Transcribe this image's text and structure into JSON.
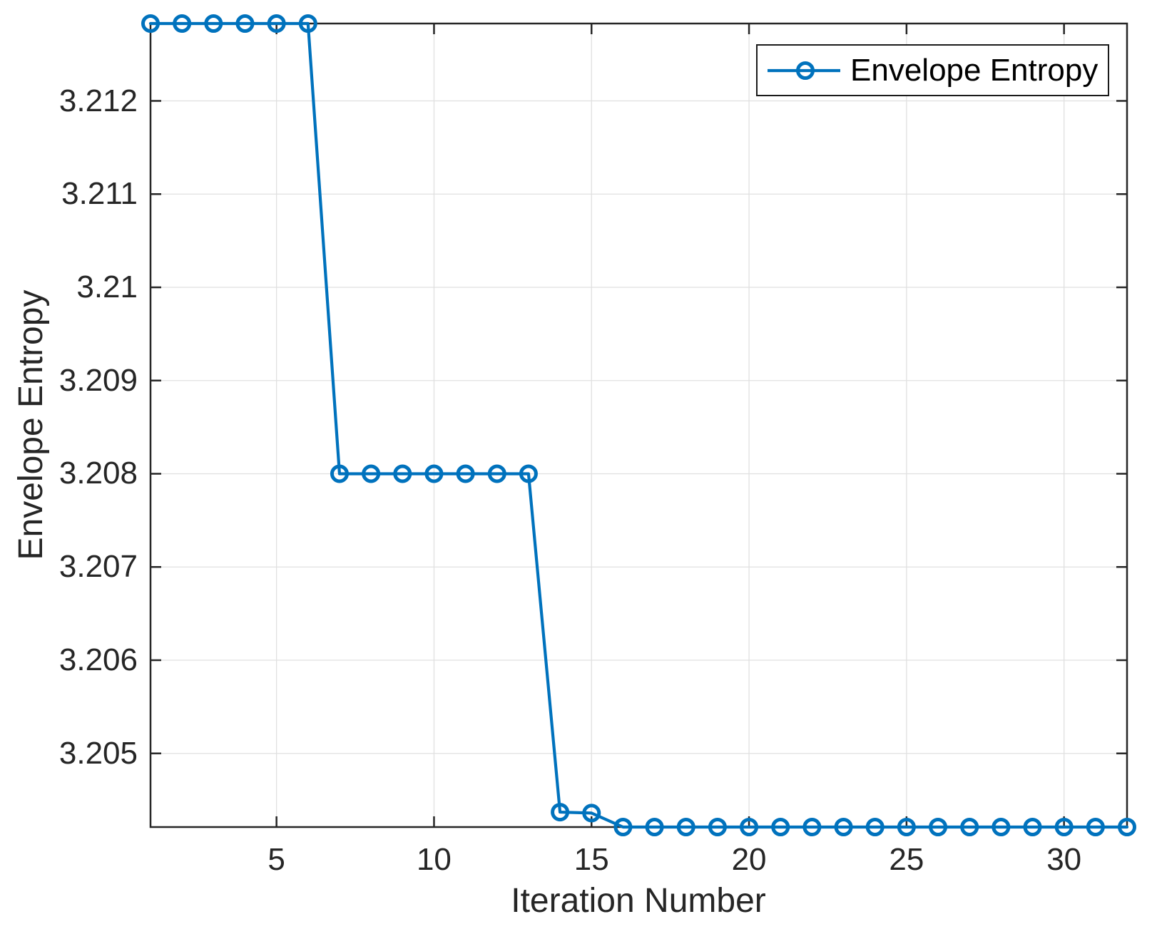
{
  "figure": {
    "background": "#ffffff"
  },
  "chart_data": {
    "type": "line",
    "title": "",
    "xlabel": "Iteration Number",
    "ylabel": "Envelope Entropy",
    "legend": {
      "label": "Envelope Entropy",
      "position": "top-right"
    },
    "x": [
      1,
      2,
      3,
      4,
      5,
      6,
      7,
      8,
      9,
      10,
      11,
      12,
      13,
      14,
      15,
      16,
      17,
      18,
      19,
      20,
      21,
      22,
      23,
      24,
      25,
      26,
      27,
      28,
      29,
      30,
      31,
      32
    ],
    "series": [
      {
        "name": "Envelope Entropy",
        "marker": "circle-open",
        "color": "#0072BD",
        "values": [
          3.21283,
          3.21283,
          3.21283,
          3.21283,
          3.21283,
          3.21283,
          3.208,
          3.208,
          3.208,
          3.208,
          3.208,
          3.208,
          3.208,
          3.20437,
          3.20436,
          3.20421,
          3.20421,
          3.20421,
          3.20421,
          3.20421,
          3.20421,
          3.20421,
          3.20421,
          3.20421,
          3.20421,
          3.20421,
          3.20421,
          3.20421,
          3.20421,
          3.20421,
          3.20421,
          3.20421
        ]
      }
    ],
    "xlim": [
      1,
      32
    ],
    "ylim": [
      3.20421,
      3.21283
    ],
    "xticks": [
      5,
      10,
      15,
      20,
      25,
      30
    ],
    "xtick_labels": [
      "5",
      "10",
      "15",
      "20",
      "25",
      "30"
    ],
    "yticks": [
      3.205,
      3.206,
      3.207,
      3.208,
      3.209,
      3.21,
      3.211,
      3.212
    ],
    "ytick_labels": [
      "3.205",
      "3.206",
      "3.207",
      "3.208",
      "3.209",
      "3.21",
      "3.211",
      "3.212"
    ],
    "grid": true,
    "colors": {
      "line": "#0072BD",
      "axis": "#262626",
      "grid": "#e0e0e0",
      "tick_text": "#262626",
      "legend_text": "#000000"
    }
  }
}
